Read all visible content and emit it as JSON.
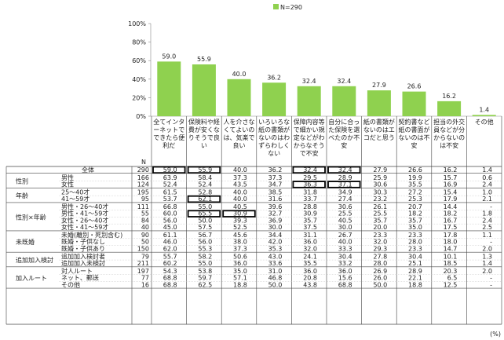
{
  "chart_data": {
    "type": "bar",
    "legend": "N=290",
    "legend_position": "top-center",
    "ylim": [
      0,
      100
    ],
    "yticks": [
      "0%",
      "20%",
      "40%",
      "60%",
      "80%",
      "100%"
    ],
    "bar_color": "#8fd14f",
    "highlight_color": "#000000",
    "categories": [
      "全てインターネットでできたら便利だ",
      "保険料や経費が安くなりそうで良い",
      "人を介さなくてよいのは、気楽で良い",
      "いろいろな紙の書類がないのはわずらわしくない",
      "保障内容等で細かい規定などがわからなそうで不安",
      "自分に合った保険を選べたのか不安",
      "紙の書類がないのはエコだと思う",
      "契約書など紙の書面がないのは不安",
      "担当の外交員などが分からないのは不安",
      "その他"
    ],
    "values": [
      59.0,
      55.9,
      40.0,
      36.2,
      32.4,
      32.4,
      27.9,
      26.6,
      16.2,
      1.4
    ],
    "value_labels": [
      "59.0",
      "55.9",
      "40.0",
      "36.2",
      "32.4",
      "32.4",
      "27.9",
      "26.6",
      "16.2",
      "1.4"
    ]
  },
  "table": {
    "n_header": "N",
    "unit": "(%)",
    "groups": [
      {
        "label": "",
        "rows": [
          {
            "label": "全体",
            "n": "290",
            "values": [
              "59.0",
              "55.9",
              "40.0",
              "36.2",
              "32.4",
              "32.4",
              "27.9",
              "26.6",
              "16.2",
              "1.4"
            ]
          }
        ]
      },
      {
        "label": "性別",
        "rows": [
          {
            "label": "男性",
            "n": "166",
            "values": [
              "63.9",
              "58.4",
              "37.3",
              "37.3",
              "29.5",
              "28.9",
              "25.9",
              "19.9",
              "15.7",
              "0.6"
            ]
          },
          {
            "label": "女性",
            "n": "124",
            "values": [
              "52.4",
              "52.4",
              "43.5",
              "34.7",
              "36.3",
              "37.1",
              "30.6",
              "35.5",
              "16.9",
              "2.4"
            ]
          }
        ]
      },
      {
        "label": "年齢",
        "rows": [
          {
            "label": "25～40才",
            "n": "195",
            "values": [
              "61.5",
              "52.8",
              "40.0",
              "38.5",
              "31.8",
              "34.9",
              "30.3",
              "27.2",
              "15.4",
              "1.0"
            ]
          },
          {
            "label": "41～59才",
            "n": "95",
            "values": [
              "53.7",
              "62.1",
              "40.0",
              "31.6",
              "33.7",
              "27.4",
              "23.2",
              "25.3",
              "17.9",
              "2.1"
            ]
          }
        ]
      },
      {
        "label": "性別×年齢",
        "rows": [
          {
            "label": "男性・26～40才",
            "n": "111",
            "values": [
              "66.8",
              "55.0",
              "40.5",
              "39.6",
              "28.8",
              "30.6",
              "26.1",
              "20.7",
              "14.4",
              "-"
            ]
          },
          {
            "label": "男性・41～59才",
            "n": "55",
            "values": [
              "60.0",
              "65.5",
              "30.9",
              "32.7",
              "30.9",
              "25.5",
              "25.5",
              "18.2",
              "18.2",
              "1.8"
            ]
          },
          {
            "label": "女性・26～40才",
            "n": "84",
            "values": [
              "56.0",
              "50.0",
              "39.3",
              "36.9",
              "35.7",
              "40.5",
              "35.7",
              "35.7",
              "16.7",
              "2.4"
            ]
          },
          {
            "label": "女性・41～59才",
            "n": "40",
            "values": [
              "45.0",
              "57.5",
              "52.5",
              "30.0",
              "37.5",
              "30.0",
              "20.0",
              "35.0",
              "17.5",
              "2.5"
            ]
          }
        ]
      },
      {
        "label": "未既婚",
        "rows": [
          {
            "label": "未婚(離別・死別含む)",
            "n": "90",
            "values": [
              "61.1",
              "56.7",
              "45.6",
              "34.4",
              "31.1",
              "26.7",
              "23.3",
              "23.3",
              "17.8",
              "1.1"
            ]
          },
          {
            "label": "既婚・子供なし",
            "n": "50",
            "values": [
              "46.0",
              "56.0",
              "38.0",
              "42.0",
              "36.0",
              "40.0",
              "32.0",
              "28.0",
              "18.0",
              "-"
            ]
          },
          {
            "label": "既婚・子供あり",
            "n": "150",
            "values": [
              "62.0",
              "55.3",
              "37.3",
              "35.3",
              "32.0",
              "33.3",
              "29.3",
              "23.3",
              "14.7",
              "2.0"
            ]
          }
        ]
      },
      {
        "label": "追加加入検討",
        "rows": [
          {
            "label": "追加加入検討者",
            "n": "79",
            "values": [
              "55.7",
              "58.2",
              "50.6",
              "43.0",
              "24.1",
              "30.4",
              "27.8",
              "30.4",
              "10.1",
              "1.3"
            ]
          },
          {
            "label": "追加加入未検討",
            "n": "211",
            "values": [
              "60.2",
              "55.0",
              "36.0",
              "33.6",
              "35.5",
              "33.2",
              "28.0",
              "25.1",
              "18.5",
              "1.4"
            ]
          }
        ]
      },
      {
        "label": "加入ルート",
        "rows": [
          {
            "label": "対人ルート",
            "n": "197",
            "values": [
              "54.3",
              "53.8",
              "35.0",
              "31.0",
              "36.0",
              "36.0",
              "26.9",
              "28.9",
              "20.3",
              "2.0"
            ]
          },
          {
            "label": "ネット、郵送",
            "n": "77",
            "values": [
              "68.8",
              "59.7",
              "57.1",
              "46.8",
              "20.8",
              "15.6",
              "26.0",
              "22.1",
              "6.5",
              "-"
            ]
          },
          {
            "label": "その他",
            "n": "16",
            "values": [
              "68.8",
              "62.5",
              "18.8",
              "50.0",
              "43.8",
              "68.8",
              "50.0",
              "18.8",
              "12.5",
              "-"
            ]
          }
        ]
      }
    ],
    "boxed": [
      [
        0,
        0
      ],
      [
        0,
        1
      ],
      [
        0,
        4
      ],
      [
        0,
        5
      ],
      [
        2,
        4
      ],
      [
        2,
        5
      ],
      [
        4,
        1
      ],
      [
        6,
        1
      ],
      [
        6,
        2
      ]
    ]
  }
}
